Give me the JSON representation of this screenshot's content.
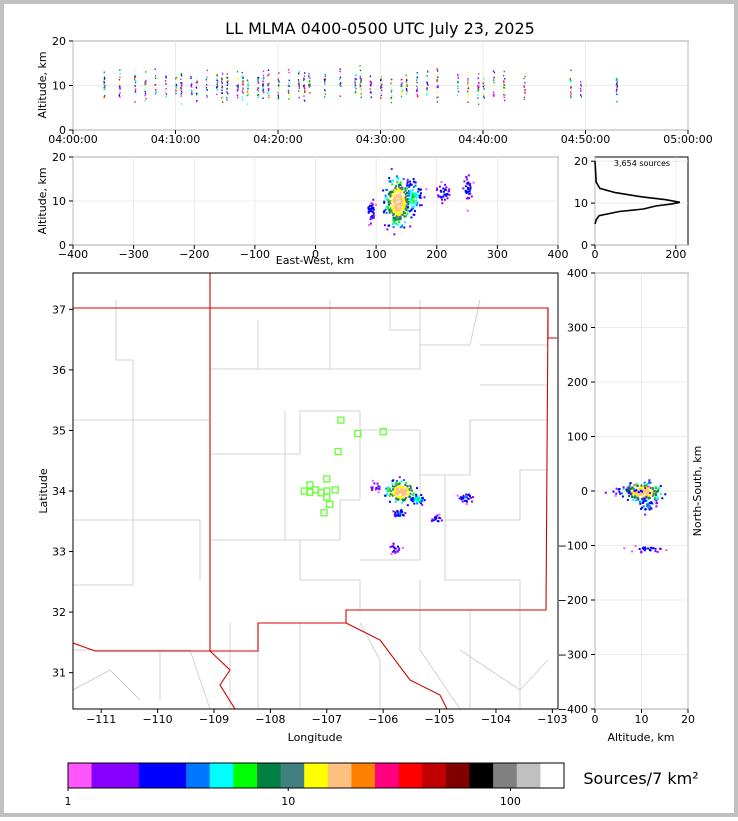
{
  "title": "LL MLMA 0400-0500 UTC July 23, 2025",
  "colorbar_label": "Sources/7 km²",
  "colorbar_ticks": [
    "1",
    "10",
    "100"
  ],
  "colorbar_colors": [
    "#ff55ff",
    "#8800ff",
    "#8800ff",
    "#0000ff",
    "#0000ff",
    "#0077ff",
    "#00ffff",
    "#00ff00",
    "#008040",
    "#408080",
    "#ffff00",
    "#ffc080",
    "#ff8000",
    "#ff0080",
    "#ff0000",
    "#c00000",
    "#800000",
    "#000000",
    "#808080",
    "#c0c0c0",
    "#ffffff"
  ],
  "source_count_text": "3,654 sources",
  "panels": {
    "time_altitude": {
      "ylabel": "Altitude, km",
      "xticks": [
        "04:00:00",
        "04:10:00",
        "04:20:00",
        "04:30:00",
        "04:40:00",
        "04:50:00",
        "05:00:00"
      ],
      "yticks": [
        "0",
        "10",
        "20"
      ]
    },
    "ew_altitude": {
      "ylabel": "Altitude, km",
      "xlabel": "East-West, km",
      "xticks": [
        "−400",
        "−300",
        "−200",
        "−100",
        "0",
        "100",
        "200",
        "300",
        "400"
      ],
      "yticks": [
        "0",
        "10",
        "20"
      ]
    },
    "histogram": {
      "xticks": [
        "0",
        "200"
      ],
      "yticks": [
        "0",
        "10",
        "20"
      ]
    },
    "plan": {
      "ylabel": "Latitude",
      "xlabel": "Longitude",
      "xticks": [
        "−111",
        "−110",
        "−109",
        "−108",
        "−107",
        "−106",
        "−105",
        "−104",
        "−103"
      ],
      "yticks": [
        "31",
        "32",
        "33",
        "34",
        "35",
        "36",
        "37"
      ]
    },
    "ns_altitude": {
      "ylabel": "North-South, km",
      "xlabel": "Altitude, km",
      "xticks": [
        "0",
        "10",
        "20"
      ],
      "yticks": [
        "−400",
        "−300",
        "−200",
        "−100",
        "0",
        "100",
        "200",
        "300",
        "400"
      ]
    }
  },
  "chart_data": [
    {
      "type": "scatter",
      "panel": "time_altitude",
      "xlabel": "",
      "ylabel": "Altitude, km",
      "xlim": [
        "04:00:00",
        "05:00:00"
      ],
      "ylim": [
        0,
        20
      ],
      "x_ticks": [
        "04:00:00",
        "04:10:00",
        "04:20:00",
        "04:30:00",
        "04:40:00",
        "04:50:00",
        "05:00:00"
      ],
      "flash_times": [
        "04:03:00",
        "04:04:30",
        "04:06:00",
        "04:07:00",
        "04:08:00",
        "04:09:00",
        "04:10:00",
        "04:10:30",
        "04:11:30",
        "04:12:00",
        "04:13:00",
        "04:14:00",
        "04:14:30",
        "04:15:00",
        "04:16:00",
        "04:16:30",
        "04:17:00",
        "04:18:00",
        "04:18:30",
        "04:19:00",
        "04:20:00",
        "04:21:00",
        "04:22:00",
        "04:22:30",
        "04:23:00",
        "04:24:30",
        "04:26:00",
        "04:27:30",
        "04:28:00",
        "04:29:00",
        "04:30:00",
        "04:31:00",
        "04:32:00",
        "04:32:30",
        "04:33:30",
        "04:34:30",
        "04:35:30",
        "04:37:30",
        "04:38:30",
        "04:39:30",
        "04:40:00",
        "04:41:00",
        "04:42:00",
        "04:44:00",
        "04:48:30",
        "04:49:30",
        "04:53:00"
      ],
      "altitude_range_km": [
        2,
        17
      ],
      "altitude_core_km": 10
    },
    {
      "type": "heatmap",
      "panel": "ew_altitude",
      "xlabel": "East-West, km",
      "ylabel": "Altitude, km",
      "xlim": [
        -400,
        400
      ],
      "ylim": [
        0,
        20
      ],
      "clusters": [
        {
          "x": 90,
          "y": 8,
          "sx": 4,
          "sy": 1.5,
          "density": 3
        },
        {
          "x": 135,
          "y": 10,
          "sx": 10,
          "sy": 2.6,
          "density": 50
        },
        {
          "x": 160,
          "y": 11,
          "sx": 7,
          "sy": 2.2,
          "density": 10
        },
        {
          "x": 210,
          "y": 12,
          "sx": 6,
          "sy": 1.2,
          "density": 3
        },
        {
          "x": 250,
          "y": 13,
          "sx": 4,
          "sy": 1.6,
          "density": 3
        }
      ]
    },
    {
      "type": "line",
      "panel": "histogram",
      "title": "3,654 sources",
      "xlim": [
        0,
        230
      ],
      "ylim": [
        0,
        21
      ],
      "x": [
        0,
        3,
        10,
        60,
        120,
        150,
        190,
        210,
        175,
        115,
        50,
        12,
        3,
        0
      ],
      "y": [
        5,
        6,
        7,
        8,
        8.6,
        9.3,
        9.8,
        10.2,
        10.8,
        11.5,
        12.5,
        13.5,
        15,
        20
      ]
    },
    {
      "type": "scatter",
      "panel": "plan",
      "xlabel": "Longitude",
      "ylabel": "Latitude",
      "xlim": [
        -111.5,
        -102.9
      ],
      "ylim": [
        30.4,
        37.6
      ],
      "stations": [
        {
          "lon": -106.75,
          "lat": 35.17
        },
        {
          "lon": -106.45,
          "lat": 34.95
        },
        {
          "lon": -106.0,
          "lat": 34.98
        },
        {
          "lon": -106.8,
          "lat": 34.65
        },
        {
          "lon": -107.0,
          "lat": 34.2
        },
        {
          "lon": -107.3,
          "lat": 34.1
        },
        {
          "lon": -107.4,
          "lat": 34.0
        },
        {
          "lon": -107.3,
          "lat": 33.98
        },
        {
          "lon": -107.2,
          "lat": 34.02
        },
        {
          "lon": -107.1,
          "lat": 33.97
        },
        {
          "lon": -107.0,
          "lat": 34.0
        },
        {
          "lon": -106.85,
          "lat": 34.02
        },
        {
          "lon": -107.0,
          "lat": 33.9
        },
        {
          "lon": -106.95,
          "lat": 33.78
        },
        {
          "lon": -107.05,
          "lat": 33.64
        }
      ],
      "source_clusters": [
        {
          "lon": -105.7,
          "lat": 34.0,
          "density": 50
        },
        {
          "lon": -105.4,
          "lat": 33.87,
          "density": 10
        },
        {
          "lon": -105.72,
          "lat": 33.65,
          "density": 5
        },
        {
          "lon": -104.55,
          "lat": 33.9,
          "density": 5
        },
        {
          "lon": -105.07,
          "lat": 33.55,
          "density": 3
        },
        {
          "lon": -105.8,
          "lat": 33.07,
          "density": 3
        },
        {
          "lon": -106.15,
          "lat": 34.08,
          "density": 2
        }
      ]
    },
    {
      "type": "heatmap",
      "panel": "ns_altitude",
      "xlabel": "Altitude, km",
      "ylabel": "North-South, km",
      "xlim": [
        0,
        20
      ],
      "ylim": [
        -400,
        400
      ],
      "clusters": [
        {
          "x": 10,
          "y": 0,
          "sx": 2.0,
          "sy": 8,
          "density": 50
        },
        {
          "x": 11,
          "y": -25,
          "sx": 1.2,
          "sy": 8,
          "density": 5
        },
        {
          "x": 11,
          "y": -105,
          "sx": 1.8,
          "sy": 3,
          "density": 3
        },
        {
          "x": 7,
          "y": 2,
          "sx": 3,
          "sy": 4,
          "density": 3
        }
      ]
    }
  ]
}
